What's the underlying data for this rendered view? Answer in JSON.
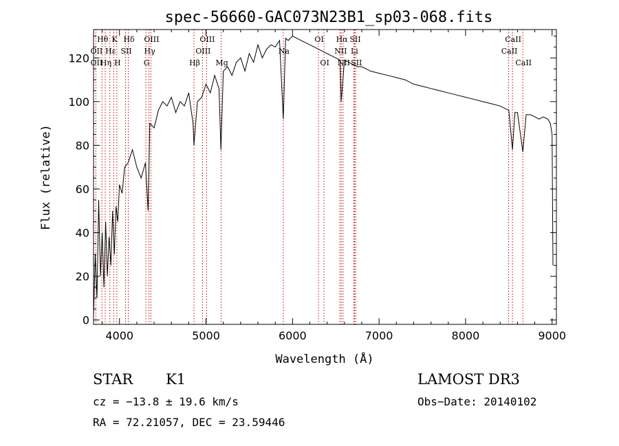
{
  "chart_data": {
    "type": "line",
    "title": "spec-56660-GAC073N23B1_sp03-068.fits",
    "xlabel": "Wavelength (Å)",
    "ylabel": "Flux (relative)",
    "xlim": [
      3700,
      9050
    ],
    "ylim": [
      -2,
      133
    ],
    "xticks": [
      4000,
      5000,
      6000,
      7000,
      8000,
      9000
    ],
    "yticks": [
      0,
      20,
      40,
      60,
      80,
      100,
      120
    ],
    "xtick_labels": [
      "4000",
      "5000",
      "6000",
      "7000",
      "8000",
      "9000"
    ],
    "ytick_labels": [
      "0",
      "20",
      "40",
      "60",
      "80",
      "100",
      "120"
    ],
    "series": [
      {
        "name": "flux",
        "x": [
          3700,
          3720,
          3740,
          3760,
          3780,
          3800,
          3820,
          3840,
          3860,
          3880,
          3900,
          3920,
          3940,
          3960,
          3980,
          4000,
          4030,
          4060,
          4100,
          4150,
          4200,
          4250,
          4300,
          4330,
          4350,
          4400,
          4450,
          4500,
          4550,
          4600,
          4650,
          4700,
          4750,
          4800,
          4850,
          4861,
          4900,
          4950,
          5000,
          5050,
          5100,
          5150,
          5172,
          5200,
          5250,
          5300,
          5350,
          5400,
          5450,
          5500,
          5550,
          5600,
          5650,
          5700,
          5750,
          5800,
          5850,
          5893,
          5920,
          5950,
          6000,
          6050,
          6100,
          6150,
          6200,
          6250,
          6300,
          6350,
          6400,
          6450,
          6500,
          6550,
          6563,
          6600,
          6650,
          6700,
          6750,
          6800,
          6850,
          6900,
          7000,
          7100,
          7200,
          7300,
          7400,
          7500,
          7600,
          7700,
          7800,
          7900,
          8000,
          8100,
          8200,
          8300,
          8400,
          8450,
          8500,
          8542,
          8570,
          8600,
          8662,
          8700,
          8750,
          8800,
          8850,
          8900,
          8950,
          8980,
          9000,
          9010
        ],
        "y": [
          2,
          30,
          10,
          55,
          20,
          40,
          15,
          45,
          20,
          38,
          25,
          50,
          30,
          52,
          45,
          62,
          58,
          70,
          72,
          78,
          70,
          65,
          72,
          50,
          90,
          88,
          96,
          100,
          98,
          102,
          95,
          100,
          98,
          104,
          90,
          80,
          100,
          102,
          108,
          104,
          112,
          106,
          78,
          114,
          116,
          112,
          118,
          120,
          114,
          122,
          118,
          126,
          120,
          124,
          126,
          125,
          128,
          92,
          129,
          128,
          130,
          129,
          128,
          127,
          126,
          125,
          124,
          123,
          122,
          121,
          120,
          119,
          100,
          119,
          118,
          117,
          116,
          116,
          115,
          114,
          113,
          112,
          111,
          110,
          108,
          107,
          106,
          105,
          104,
          103,
          102,
          101,
          100,
          99,
          98,
          97,
          96,
          78,
          95,
          95,
          77,
          94,
          94,
          93,
          92,
          93,
          92,
          90,
          85,
          25
        ]
      }
    ],
    "line_labels": [
      {
        "label": "Hθ",
        "x": 3797,
        "row": 0
      },
      {
        "label": "OII",
        "x": 3727,
        "row": 1
      },
      {
        "label": "OII",
        "x": 3727,
        "row": 2
      },
      {
        "label": "Hε",
        "x": 3889,
        "row": 1
      },
      {
        "label": "Hη",
        "x": 3835,
        "row": 2
      },
      {
        "label": "K",
        "x": 3934,
        "row": 0
      },
      {
        "label": "SII",
        "x": 4070,
        "row": 1
      },
      {
        "label": "H",
        "x": 3969,
        "row": 2
      },
      {
        "label": "Hδ",
        "x": 4102,
        "row": 0
      },
      {
        "label": "OIII",
        "x": 4363,
        "row": 0
      },
      {
        "label": "Hγ",
        "x": 4341,
        "row": 1
      },
      {
        "label": "G",
        "x": 4305,
        "row": 2
      },
      {
        "label": "Hβ",
        "x": 4861,
        "row": 2
      },
      {
        "label": "OIII",
        "x": 5007,
        "row": 0
      },
      {
        "label": "OIII",
        "x": 4959,
        "row": 1
      },
      {
        "label": "Mg",
        "x": 5175,
        "row": 2
      },
      {
        "label": "Na",
        "x": 5893,
        "row": 1
      },
      {
        "label": "OI",
        "x": 6300,
        "row": 0
      },
      {
        "label": "OI",
        "x": 6364,
        "row": 2
      },
      {
        "label": "Hα",
        "x": 6563,
        "row": 0
      },
      {
        "label": "SII",
        "x": 6717,
        "row": 0
      },
      {
        "label": "NII",
        "x": 6548,
        "row": 1
      },
      {
        "label": "Li",
        "x": 6708,
        "row": 1
      },
      {
        "label": "NII",
        "x": 6584,
        "row": 2
      },
      {
        "label": "SII",
        "x": 6731,
        "row": 2
      },
      {
        "label": "CaII",
        "x": 8542,
        "row": 0
      },
      {
        "label": "CaII",
        "x": 8498,
        "row": 1
      },
      {
        "label": "CaII",
        "x": 8662,
        "row": 2
      }
    ]
  },
  "info": {
    "object_class": "STAR",
    "subclass": "K1",
    "survey": "LAMOST DR3",
    "cz": "cz = −13.8 ± 19.6 km/s",
    "obs_date": "Obs−Date: 20140102",
    "coords": "RA =  72.21057, DEC =  23.59446"
  },
  "colors": {
    "line": "#000000",
    "marker": "#c00000",
    "background": "#ffffff"
  }
}
